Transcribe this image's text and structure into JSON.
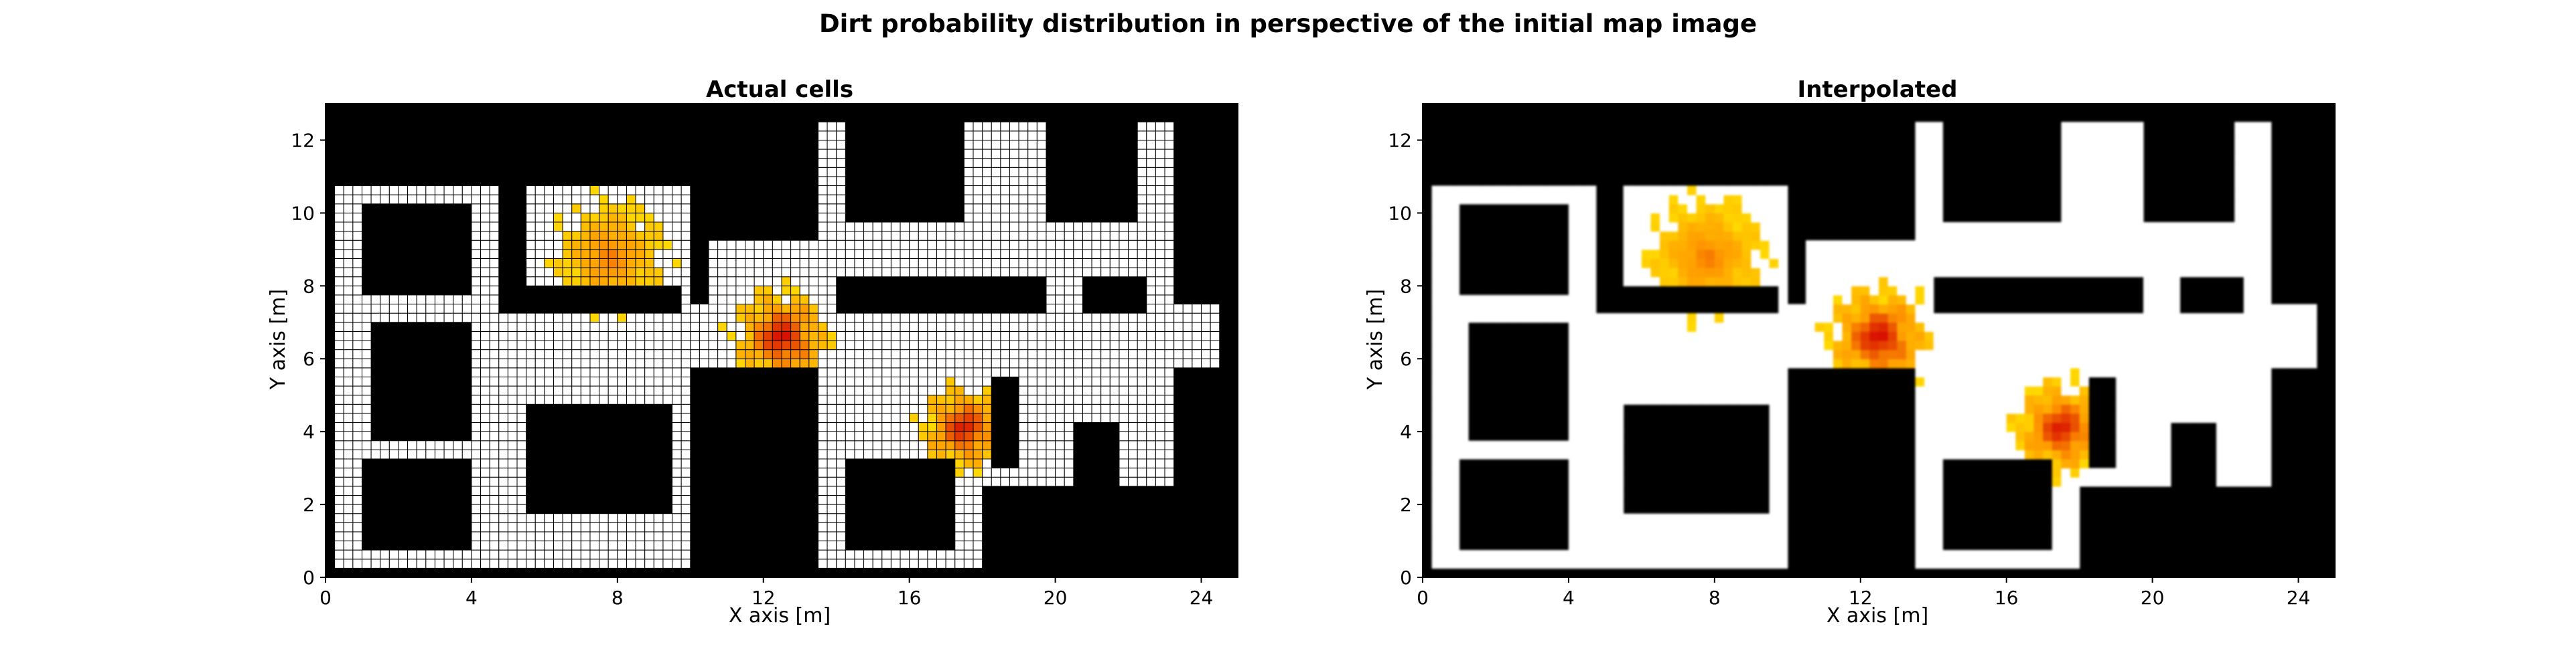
{
  "figure": {
    "title": "Dirt probability distribution in perspective of the initial map image"
  },
  "colors": {
    "occupied": "#000000",
    "free": "#ffffff",
    "grid_line": "#000000",
    "heat_low": "#ffe600",
    "heat_mid": "#ff9900",
    "heat_high": "#d40000"
  },
  "chart_data": [
    {
      "type": "heatmap",
      "title": "Actual cells",
      "xlabel": "X axis [m]",
      "ylabel": "Y axis [m]",
      "xlim": [
        0,
        25
      ],
      "ylim": [
        0,
        13
      ],
      "xticks": [
        "0",
        "4",
        "8",
        "12",
        "16",
        "20",
        "24"
      ],
      "yticks": [
        "0",
        "2",
        "4",
        "6",
        "8",
        "10",
        "12"
      ],
      "cell_size_m": 0.25,
      "grid": true,
      "background": "occupied (black)",
      "free_regions": [
        {
          "x": [
            0.3,
            4.8
          ],
          "y": [
            0.3,
            10.7
          ]
        },
        {
          "x": [
            4.8,
            10.0
          ],
          "y": [
            5.2,
            7.2
          ]
        },
        {
          "x": [
            4.8,
            10.0
          ],
          "y": [
            0.3,
            5.2
          ]
        },
        {
          "x": [
            5.5,
            10.0
          ],
          "y": [
            7.2,
            10.7
          ]
        },
        {
          "x": [
            10.0,
            24.5
          ],
          "y": [
            5.8,
            7.6
          ]
        },
        {
          "x": [
            10.5,
            13.5
          ],
          "y": [
            7.6,
            9.2
          ]
        },
        {
          "x": [
            13.5,
            23.2
          ],
          "y": [
            7.6,
            12.6
          ]
        },
        {
          "x": [
            13.5,
            18.0
          ],
          "y": [
            0.3,
            5.8
          ]
        },
        {
          "x": [
            18.0,
            23.2
          ],
          "y": [
            2.5,
            5.8
          ]
        }
      ],
      "obstacles": [
        {
          "x": [
            1.0,
            4.0
          ],
          "y": [
            0.8,
            3.2
          ]
        },
        {
          "x": [
            1.2,
            4.0
          ],
          "y": [
            3.8,
            7.0
          ]
        },
        {
          "x": [
            1.0,
            4.0
          ],
          "y": [
            7.8,
            10.2
          ]
        },
        {
          "x": [
            5.4,
            9.4
          ],
          "y": [
            1.8,
            4.8
          ]
        },
        {
          "x": [
            10.4,
            13.5
          ],
          "y": [
            3.8,
            5.4
          ]
        },
        {
          "x": [
            14.3,
            17.3
          ],
          "y": [
            0.8,
            3.2
          ]
        },
        {
          "x": [
            14.3,
            17.5
          ],
          "y": [
            9.8,
            12.4
          ]
        },
        {
          "x": [
            19.7,
            22.3
          ],
          "y": [
            9.8,
            12.4
          ]
        },
        {
          "x": [
            14.0,
            16.8
          ],
          "y": [
            7.3,
            8.2
          ]
        },
        {
          "x": [
            16.8,
            19.8
          ],
          "y": [
            7.3,
            8.3
          ]
        },
        {
          "x": [
            20.7,
            22.6
          ],
          "y": [
            7.3,
            8.3
          ]
        },
        {
          "x": [
            5.5,
            9.7
          ],
          "y": [
            7.3,
            7.9
          ]
        },
        {
          "x": [
            18.2,
            19.0
          ],
          "y": [
            3.0,
            5.5
          ]
        },
        {
          "x": [
            20.5,
            21.8
          ],
          "y": [
            2.5,
            4.2
          ]
        }
      ],
      "dirt_hotspots": [
        {
          "name": "",
          "center": [
            7.8,
            8.8
          ],
          "intensity": 0.55,
          "radius_m": 1.5
        },
        {
          "name": "",
          "center": [
            12.5,
            6.6
          ],
          "intensity": 0.95,
          "radius_m": 1.3
        },
        {
          "name": "",
          "center": [
            17.5,
            4.1
          ],
          "intensity": 0.9,
          "radius_m": 1.2
        }
      ]
    },
    {
      "type": "heatmap",
      "title": "Interpolated",
      "xlabel": "X axis [m]",
      "ylabel": "Y axis [m]",
      "xlim": [
        0,
        25
      ],
      "ylim": [
        0,
        13
      ],
      "xticks": [
        "0",
        "4",
        "8",
        "12",
        "16",
        "20",
        "24"
      ],
      "yticks": [
        "0",
        "2",
        "4",
        "6",
        "8",
        "10",
        "12"
      ],
      "cell_size_m": 0.25,
      "grid": false,
      "background": "occupied (black)",
      "same_map_as": "Actual cells",
      "dirt_hotspots": [
        {
          "name": "",
          "center": [
            7.8,
            8.8
          ],
          "intensity": 0.55,
          "radius_m": 1.6
        },
        {
          "name": "",
          "center": [
            12.5,
            6.6
          ],
          "intensity": 0.95,
          "radius_m": 1.4
        },
        {
          "name": "",
          "center": [
            17.5,
            4.1
          ],
          "intensity": 0.9,
          "radius_m": 1.3
        }
      ]
    }
  ]
}
